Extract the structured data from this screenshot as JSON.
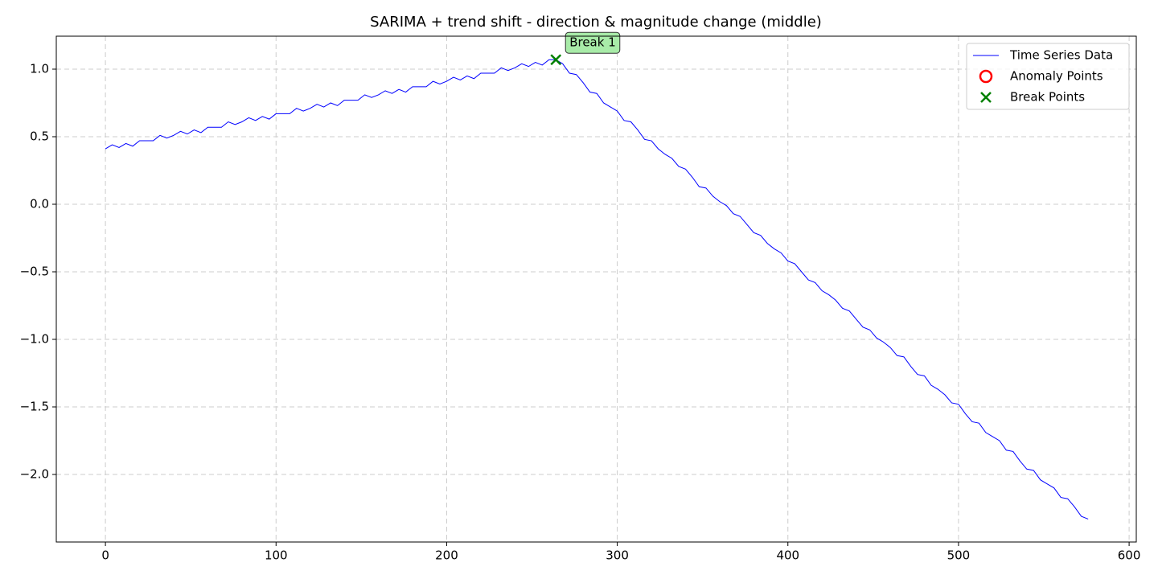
{
  "chart_data": {
    "type": "line",
    "title": "SARIMA + trend shift - direction & magnitude change (middle)",
    "xlim": [
      -28.8,
      604.2
    ],
    "ylim": [
      -2.5,
      1.244
    ],
    "xticks": [
      0,
      100,
      200,
      300,
      400,
      500,
      600
    ],
    "yticks": [
      {
        "value": -2,
        "label": "−2.0"
      },
      {
        "value": -1.5,
        "label": "−1.5"
      },
      {
        "value": -1,
        "label": "−1.0"
      },
      {
        "value": -0.5,
        "label": "−0.5"
      },
      {
        "value": 0,
        "label": "0.0"
      },
      0.5,
      {
        "value": 1,
        "label": "1.0"
      }
    ],
    "grid": true,
    "legend": "upper right",
    "series": [
      {
        "name": "Time Series Data",
        "color": "#0000ff",
        "x": [
          0,
          4,
          8,
          12,
          16,
          20,
          24,
          28,
          32,
          36,
          40,
          44,
          48,
          52,
          56,
          60,
          64,
          68,
          72,
          76,
          80,
          84,
          88,
          92,
          96,
          100,
          104,
          108,
          112,
          116,
          120,
          124,
          128,
          132,
          136,
          140,
          144,
          148,
          152,
          156,
          160,
          164,
          168,
          172,
          176,
          180,
          184,
          188,
          192,
          196,
          200,
          204,
          208,
          212,
          216,
          220,
          224,
          228,
          232,
          236,
          240,
          244,
          248,
          252,
          256,
          260,
          264,
          268,
          272,
          276,
          280,
          284,
          288,
          292,
          296,
          300,
          304,
          308,
          312,
          316,
          320,
          324,
          328,
          332,
          336,
          340,
          344,
          348,
          352,
          356,
          360,
          364,
          368,
          372,
          376,
          380,
          384,
          388,
          392,
          396,
          400,
          404,
          408,
          412,
          416,
          420,
          424,
          428,
          432,
          436,
          440,
          444,
          448,
          452,
          456,
          460,
          464,
          468,
          472,
          476,
          480,
          484,
          488,
          492,
          496,
          500,
          504,
          508,
          512,
          516,
          520,
          524,
          528,
          532,
          536,
          540,
          544,
          548,
          552,
          556,
          560,
          564,
          568,
          572,
          576
        ],
        "values": [
          0.41,
          0.44,
          0.42,
          0.45,
          0.43,
          0.47,
          0.47,
          0.47,
          0.51,
          0.49,
          0.51,
          0.54,
          0.52,
          0.55,
          0.53,
          0.57,
          0.57,
          0.57,
          0.61,
          0.59,
          0.61,
          0.64,
          0.62,
          0.65,
          0.63,
          0.67,
          0.67,
          0.67,
          0.71,
          0.69,
          0.71,
          0.74,
          0.72,
          0.75,
          0.73,
          0.77,
          0.77,
          0.77,
          0.81,
          0.79,
          0.81,
          0.84,
          0.82,
          0.85,
          0.83,
          0.87,
          0.87,
          0.87,
          0.91,
          0.89,
          0.91,
          0.94,
          0.92,
          0.95,
          0.93,
          0.97,
          0.97,
          0.97,
          1.01,
          0.99,
          1.01,
          1.04,
          1.02,
          1.05,
          1.03,
          1.07,
          1.07,
          1.04,
          0.97,
          0.96,
          0.9,
          0.83,
          0.82,
          0.75,
          0.72,
          0.69,
          0.62,
          0.61,
          0.55,
          0.48,
          0.47,
          0.41,
          0.37,
          0.34,
          0.28,
          0.26,
          0.2,
          0.13,
          0.12,
          0.06,
          0.02,
          -0.01,
          -0.07,
          -0.09,
          -0.15,
          -0.21,
          -0.23,
          -0.29,
          -0.33,
          -0.36,
          -0.42,
          -0.44,
          -0.5,
          -0.56,
          -0.58,
          -0.64,
          -0.67,
          -0.71,
          -0.77,
          -0.79,
          -0.85,
          -0.91,
          -0.93,
          -0.99,
          -1.02,
          -1.06,
          -1.12,
          -1.13,
          -1.2,
          -1.26,
          -1.27,
          -1.34,
          -1.37,
          -1.41,
          -1.47,
          -1.48,
          -1.55,
          -1.61,
          -1.62,
          -1.69,
          -1.72,
          -1.75,
          -1.82,
          -1.83,
          -1.9,
          -1.96,
          -1.97,
          -2.04,
          -2.07,
          -2.1,
          -2.17,
          -2.18,
          -2.24,
          -2.31,
          -2.33
        ]
      },
      {
        "name": "Anomaly Points",
        "color": "#ff0000",
        "marker": "o",
        "x": [],
        "values": []
      },
      {
        "name": "Break Points",
        "color": "#008000",
        "marker": "x",
        "x": [
          264
        ],
        "values": [
          1.07
        ],
        "labels": [
          "Break 1"
        ]
      }
    ]
  }
}
